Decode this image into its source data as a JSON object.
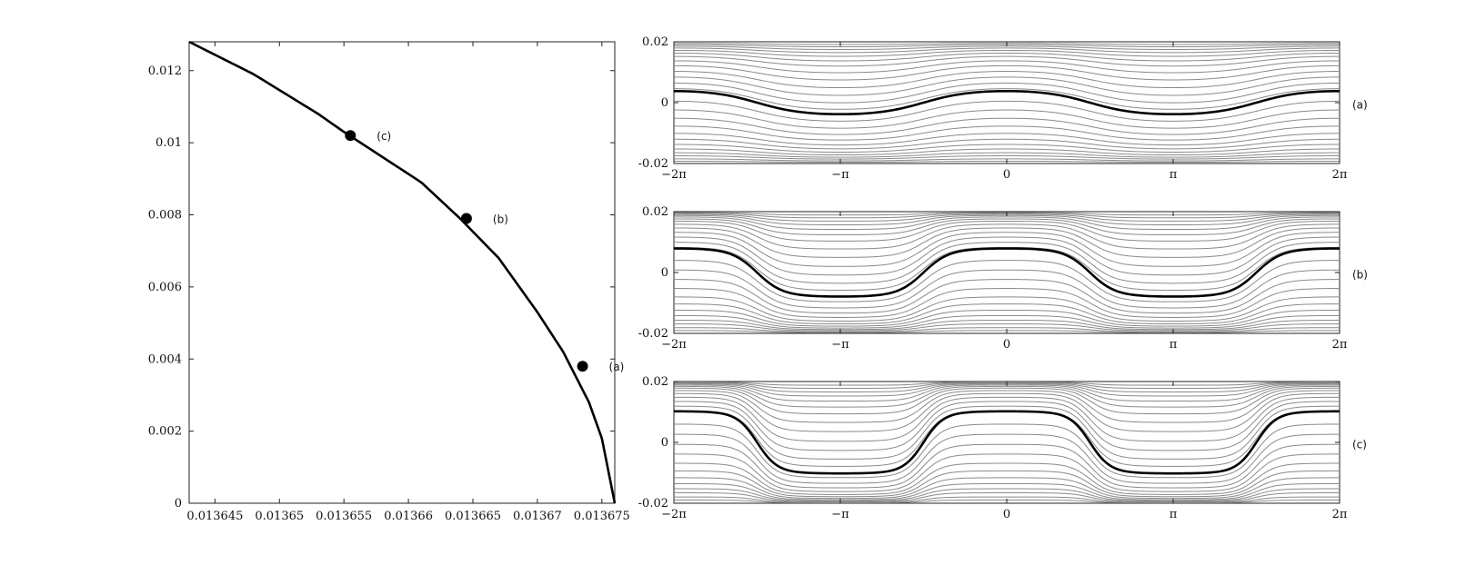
{
  "chart_data": [
    {
      "type": "line",
      "title": "",
      "xlabel": "",
      "ylabel": "",
      "xlim": [
        0.013643,
        0.013676
      ],
      "ylim": [
        0,
        0.0128
      ],
      "xticks": [
        0.013645,
        0.01365,
        0.013655,
        0.01366,
        0.013665,
        0.01367,
        0.013675
      ],
      "xtick_labels": [
        "0.013645",
        "0.01365",
        "0.013655",
        "0.01366",
        "0.013665",
        "0.01367",
        "0.013675"
      ],
      "yticks": [
        0,
        0.002,
        0.004,
        0.006,
        0.008,
        0.01,
        0.012
      ],
      "ytick_labels": [
        "0",
        "0.002",
        "0.004",
        "0.006",
        "0.008",
        "0.01",
        "0.012"
      ],
      "grid": false,
      "series": [
        {
          "x": [
            0.013643,
            0.013648,
            0.013653,
            0.013655,
            0.013658,
            0.013661,
            0.013664,
            0.013667,
            0.01367,
            0.013672,
            0.013674,
            0.013675,
            0.013676
          ],
          "y": [
            0.0128,
            0.0119,
            0.0108,
            0.0103,
            0.0096,
            0.0089,
            0.0079,
            0.0068,
            0.0053,
            0.0042,
            0.0028,
            0.0018,
            0
          ]
        }
      ],
      "points": [
        {
          "label": "(c)",
          "x": 0.0136555,
          "y": 0.0102
        },
        {
          "label": "(b)",
          "x": 0.0136645,
          "y": 0.0079
        },
        {
          "label": "(a)",
          "x": 0.0136735,
          "y": 0.0038
        }
      ]
    },
    {
      "type": "line",
      "panel_label": "(a)",
      "xlim": [
        -6.2832,
        6.2832
      ],
      "ylim": [
        -0.02,
        0.02
      ],
      "xtick_labels": [
        "−2π",
        "−π",
        "0",
        "π",
        "2π"
      ],
      "yticks": [
        -0.02,
        0,
        0.02
      ],
      "ytick_labels": [
        "-0.02",
        "0",
        "0.02"
      ],
      "separatrix_amplitude": 0.0038,
      "streamline_levels": [
        -0.0194,
        -0.0188,
        -0.018,
        -0.0172,
        -0.0162,
        -0.015,
        -0.0136,
        -0.012,
        -0.01,
        -0.0078,
        -0.0054,
        -0.0028,
        0.0012,
        0.0032,
        0.0054,
        0.0076,
        0.0098,
        0.0118,
        0.0136,
        0.015,
        0.0162,
        0.0172,
        0.018,
        0.0187,
        0.0193
      ]
    },
    {
      "type": "line",
      "panel_label": "(b)",
      "xlim": [
        -6.2832,
        6.2832
      ],
      "ylim": [
        -0.02,
        0.02
      ],
      "xtick_labels": [
        "−2π",
        "−π",
        "0",
        "π",
        "2π"
      ],
      "yticks": [
        -0.02,
        0,
        0.02
      ],
      "ytick_labels": [
        "-0.02",
        "0",
        "0.02"
      ],
      "separatrix_amplitude": 0.0079,
      "streamline_levels": [
        -0.0194,
        -0.0188,
        -0.018,
        -0.0172,
        -0.0162,
        -0.015,
        -0.0136,
        -0.012,
        -0.01,
        -0.0078,
        -0.0054,
        -0.0028,
        0.0012,
        0.0032,
        0.0054,
        0.0076,
        0.0098,
        0.0118,
        0.0136,
        0.015,
        0.0162,
        0.0172,
        0.018,
        0.0187,
        0.0193
      ]
    },
    {
      "type": "line",
      "panel_label": "(c)",
      "xlim": [
        -6.2832,
        6.2832
      ],
      "ylim": [
        -0.02,
        0.02
      ],
      "xtick_labels": [
        "−2π",
        "−π",
        "0",
        "π",
        "2π"
      ],
      "yticks": [
        -0.02,
        0,
        0.02
      ],
      "ytick_labels": [
        "-0.02",
        "0",
        "0.02"
      ],
      "separatrix_amplitude": 0.0102,
      "streamline_levels": [
        -0.0194,
        -0.0188,
        -0.018,
        -0.0172,
        -0.0162,
        -0.015,
        -0.0136,
        -0.012,
        -0.01,
        -0.0078,
        -0.0054,
        -0.0028,
        0.0012,
        0.0032,
        0.0054,
        0.0076,
        0.0098,
        0.0118,
        0.0136,
        0.015,
        0.0162,
        0.0172,
        0.018,
        0.0187,
        0.0193
      ]
    }
  ]
}
